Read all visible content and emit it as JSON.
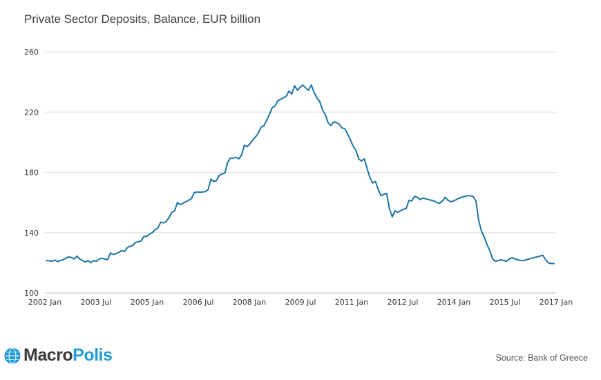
{
  "chart_data": {
    "type": "line",
    "title": "Private Sector Deposits, Balance, EUR billion",
    "xlabel": "",
    "ylabel": "",
    "ylim": [
      100,
      260
    ],
    "yticks": [
      100,
      140,
      180,
      220,
      260
    ],
    "xticks": [
      "2002 Jan",
      "2003 Jul",
      "2005 Jan",
      "2006 Jul",
      "2008 Jan",
      "2009 Jul",
      "2011 Jan",
      "2012 Jul",
      "2014 Jan",
      "2015 Jul",
      "2017 Jan"
    ],
    "grid": true,
    "legend": "none",
    "series": [
      {
        "name": "Private Sector Deposits",
        "color": "#1a73a6",
        "start": "2002 Jan",
        "frequency": "monthly",
        "values": [
          121.5,
          121.3,
          121.0,
          121.8,
          120.8,
          121.5,
          122.0,
          123.0,
          124.0,
          123.5,
          122.5,
          124.5,
          122.5,
          121.5,
          120.5,
          121.5,
          120.0,
          121.5,
          121.0,
          122.5,
          123.0,
          122.5,
          122.0,
          126.5,
          125.5,
          126.0,
          127.0,
          128.0,
          127.5,
          130.0,
          131.0,
          131.5,
          133.5,
          134.0,
          134.5,
          137.5,
          137.5,
          139.0,
          140.0,
          142.0,
          143.0,
          147.0,
          146.5,
          147.5,
          150.0,
          153.5,
          154.5,
          160.0,
          158.5,
          159.5,
          160.5,
          161.5,
          162.5,
          166.5,
          167.0,
          166.8,
          167.0,
          167.2,
          168.5,
          175.5,
          174.0,
          174.5,
          178.0,
          179.0,
          179.5,
          186.5,
          189.5,
          189.5,
          190.0,
          189.0,
          191.5,
          198.0,
          197.0,
          199.0,
          201.5,
          203.5,
          206.0,
          210.0,
          211.0,
          214.5,
          218.5,
          223.0,
          224.0,
          227.5,
          228.5,
          229.5,
          230.5,
          234.0,
          232.0,
          237.5,
          234.5,
          236.5,
          238.0,
          236.0,
          234.5,
          238.0,
          233.0,
          229.5,
          227.0,
          221.5,
          218.5,
          213.0,
          211.0,
          213.5,
          213.0,
          212.0,
          209.5,
          209.0,
          205.5,
          201.5,
          197.5,
          194.5,
          189.0,
          187.5,
          189.0,
          182.5,
          176.5,
          173.0,
          174.0,
          168.5,
          164.5,
          165.5,
          166.0,
          156.0,
          150.5,
          154.5,
          153.5,
          154.5,
          155.5,
          156.0,
          161.5,
          161.0,
          164.0,
          163.5,
          162.0,
          163.0,
          162.5,
          162.0,
          161.5,
          161.0,
          160.0,
          159.5,
          161.0,
          163.5,
          161.5,
          160.5,
          161.0,
          162.0,
          163.0,
          163.5,
          164.0,
          164.5,
          164.5,
          164.0,
          161.0,
          148.0,
          141.0,
          137.0,
          132.0,
          128.0,
          122.5,
          121.0,
          121.5,
          122.0,
          121.5,
          121.0,
          122.5,
          123.5,
          122.5,
          122.0,
          121.5,
          121.5,
          122.0,
          122.5,
          123.0,
          123.5,
          124.0,
          124.5,
          125.0,
          122.0,
          120.0,
          119.5,
          119.5
        ]
      }
    ]
  },
  "branding": {
    "logo_part1": "Macro",
    "logo_part2": "Polis"
  },
  "footer": {
    "source": "Source: Bank of Greece"
  }
}
